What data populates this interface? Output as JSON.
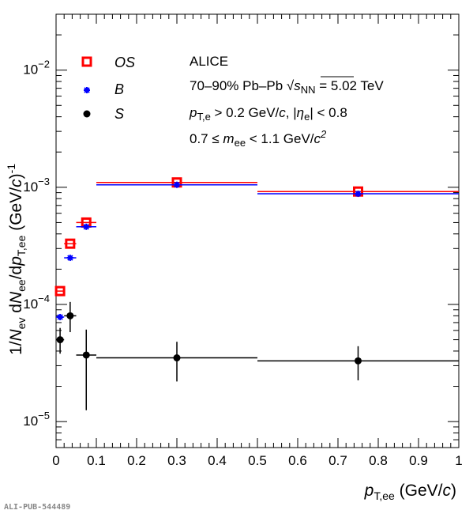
{
  "chart_data": {
    "type": "scatter",
    "experiment": "ALICE",
    "system_prefix": "70–90% Pb–Pb ",
    "sqrt": "√",
    "sqrt_s": "s",
    "sqrt_sub": "NN",
    "energy_suffix": " = 5.02 TeV",
    "cut_pt_p": "p",
    "cut_pt_sub": "T,e",
    "cut_pt_rest": " > 0.2 GeV/",
    "cut_pt_c": "c",
    "cut_eta_a": ", |",
    "cut_eta_sym": "η",
    "cut_eta_sub": "e",
    "cut_eta_b": "| < 0.8",
    "mass_a": "0.7 ≤ ",
    "mass_m": "m",
    "mass_sub": "ee",
    "mass_b": " < 1.1 GeV/",
    "mass_c": "c",
    "mass_exp": "2",
    "xlabel": {
      "p": "p",
      "sub": "T,ee",
      "unit": " (GeV/",
      "c": "c",
      "close": ")"
    },
    "ylabel": {
      "a": "1/",
      "N": "N",
      "ev": "ev",
      "d": " d",
      "N2": "N",
      "ee": "ee",
      "dp": "/d",
      "p": "p",
      "tee": "T,ee",
      "unit": " (GeV/",
      "c": "c",
      "close": ")",
      "exp": "-1"
    },
    "xlim": [
      0,
      1
    ],
    "ylim": [
      6e-06,
      0.03
    ],
    "yscale": "log",
    "xticks": [
      "0",
      "0.1",
      "0.2",
      "0.3",
      "0.4",
      "0.5",
      "0.6",
      "0.7",
      "0.8",
      "0.9",
      "1"
    ],
    "yticks": [
      {
        "base": "10",
        "exp": "−5"
      },
      {
        "base": "10",
        "exp": "−4"
      },
      {
        "base": "10",
        "exp": "−3"
      },
      {
        "base": "10",
        "exp": "−2"
      }
    ],
    "legend_position": "top-left",
    "series": [
      {
        "name": "OS",
        "color": "#ff0000",
        "marker": "open-square",
        "points": [
          {
            "x": 0.01,
            "y": 0.00013,
            "xlo": 0.0,
            "xhi": 0.02
          },
          {
            "x": 0.035,
            "y": 0.00033,
            "xlo": 0.02,
            "xhi": 0.05
          },
          {
            "x": 0.075,
            "y": 0.0005,
            "xlo": 0.05,
            "xhi": 0.1
          },
          {
            "x": 0.3,
            "y": 0.0011,
            "xlo": 0.1,
            "xhi": 0.5
          },
          {
            "x": 0.75,
            "y": 0.00092,
            "xlo": 0.5,
            "xhi": 1.0
          }
        ]
      },
      {
        "name": "B",
        "color": "#0000ff",
        "marker": "star",
        "points": [
          {
            "x": 0.01,
            "y": 7.8e-05,
            "xlo": 0.0,
            "xhi": 0.02
          },
          {
            "x": 0.035,
            "y": 0.00025,
            "xlo": 0.02,
            "xhi": 0.05
          },
          {
            "x": 0.075,
            "y": 0.00046,
            "xlo": 0.05,
            "xhi": 0.1
          },
          {
            "x": 0.3,
            "y": 0.00105,
            "xlo": 0.1,
            "xhi": 0.5
          },
          {
            "x": 0.75,
            "y": 0.00088,
            "xlo": 0.5,
            "xhi": 1.0
          }
        ]
      },
      {
        "name": "S",
        "color": "#000000",
        "marker": "filled-circle",
        "points": [
          {
            "x": 0.01,
            "y": 5e-05,
            "xlo": 0.0,
            "xhi": 0.02,
            "ylo": 3.8e-05,
            "yhi": 6.3e-05
          },
          {
            "x": 0.035,
            "y": 8e-05,
            "xlo": 0.02,
            "xhi": 0.05,
            "ylo": 5.8e-05,
            "yhi": 0.000105
          },
          {
            "x": 0.075,
            "y": 3.7e-05,
            "xlo": 0.05,
            "xhi": 0.1,
            "ylo": 1.25e-05,
            "yhi": 6.1e-05
          },
          {
            "x": 0.3,
            "y": 3.5e-05,
            "xlo": 0.1,
            "xhi": 0.5,
            "ylo": 2.2e-05,
            "yhi": 4.8e-05
          },
          {
            "x": 0.75,
            "y": 3.3e-05,
            "xlo": 0.5,
            "xhi": 1.0,
            "ylo": 2.25e-05,
            "yhi": 4.4e-05
          }
        ]
      }
    ]
  },
  "footer": "ALI-PUB-544489"
}
